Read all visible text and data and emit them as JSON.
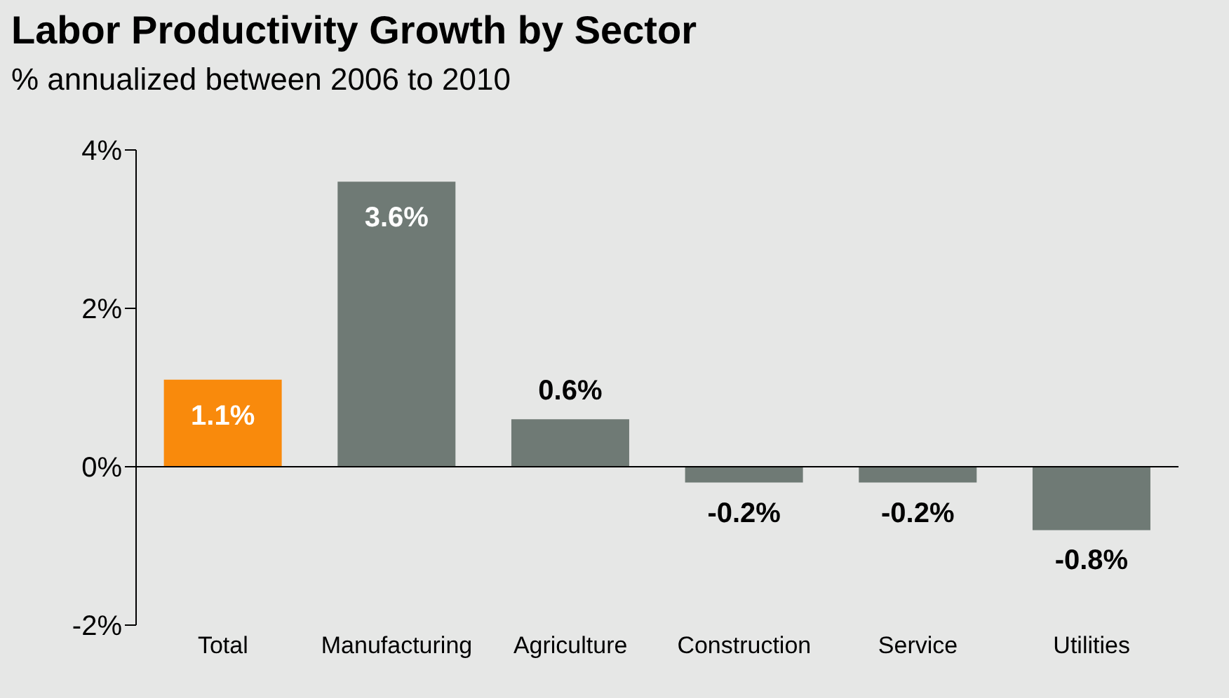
{
  "chart_data": {
    "type": "bar",
    "title": "Labor Productivity Growth by Sector",
    "subtitle": "% annualized between 2006 to 2010",
    "categories": [
      "Total",
      "Manufacturing",
      "Agriculture",
      "Construction",
      "Service",
      "Utilities"
    ],
    "values": [
      1.1,
      3.6,
      0.6,
      -0.2,
      -0.2,
      -0.8
    ],
    "colors": [
      "#f98a0c",
      "#6f7a75",
      "#6f7a75",
      "#6f7a75",
      "#6f7a75",
      "#6f7a75"
    ],
    "value_labels": [
      "1.1%",
      "3.6%",
      "0.6%",
      "-0.2%",
      "-0.2%",
      "-0.8%"
    ],
    "ylim": [
      -2,
      4
    ],
    "yticks": [
      {
        "value": -2,
        "label": "-2%"
      },
      {
        "value": 0,
        "label": "0%"
      },
      {
        "value": 2,
        "label": "2%"
      },
      {
        "value": 4,
        "label": "4%"
      }
    ],
    "grid": "y"
  }
}
